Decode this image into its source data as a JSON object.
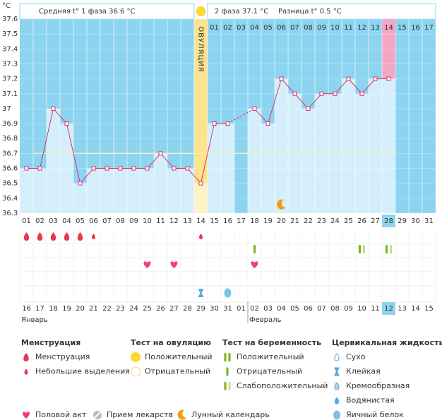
{
  "header": {
    "phase1": "Средняя t° 1 фаза 36.6 °C",
    "phase2": "2 фаза 37.1 °C",
    "diff": "Разница t° 0.5 °C"
  },
  "chart_data": {
    "type": "line",
    "y_label": "°C",
    "color": "#e0306a",
    "categories": [
      "01",
      "02",
      "03",
      "04",
      "05",
      "06",
      "07",
      "08",
      "09",
      "10",
      "11",
      "12",
      "13",
      "14",
      "15",
      "16",
      "17",
      "18",
      "19",
      "20",
      "21",
      "22",
      "23",
      "24",
      "25",
      "26",
      "27",
      "28",
      "29",
      "30",
      "31"
    ],
    "values": [
      36.6,
      36.6,
      37.0,
      36.9,
      36.5,
      36.6,
      36.6,
      36.6,
      36.6,
      36.6,
      36.7,
      36.6,
      36.6,
      36.5,
      36.9,
      36.9,
      null,
      37.0,
      36.9,
      37.2,
      37.1,
      37.0,
      37.1,
      37.1,
      37.2,
      37.1,
      37.2,
      37.2,
      null,
      null,
      null
    ],
    "ylim": [
      36.3,
      37.6
    ],
    "yticks": [
      37.6,
      37.5,
      37.4,
      37.3,
      37.2,
      37.1,
      37,
      36.9,
      36.8,
      36.7,
      36.6,
      36.5,
      36.4,
      36.3
    ],
    "coverline": 36.7,
    "ovulation_label": "ОВУЛЯЦИЯ",
    "ovulation_day": "14",
    "highlight_day": "28",
    "cycle_days": {
      "start": "15",
      "labels": [
        "01",
        "02",
        "03",
        "04",
        "05",
        "06",
        "07",
        "08",
        "09",
        "10",
        "11",
        "12",
        "13",
        "14",
        "15",
        "16",
        "17"
      ]
    },
    "dates": [
      {
        "text": "16",
        "color": "#333"
      },
      {
        "text": "17",
        "color": "#d0104c"
      },
      {
        "text": "18",
        "color": "#d0104c"
      },
      {
        "text": "19",
        "color": "#333"
      },
      {
        "text": "20",
        "color": "#333"
      },
      {
        "text": "21",
        "color": "#333"
      },
      {
        "text": "22",
        "color": "#333"
      },
      {
        "text": "23",
        "color": "#333"
      },
      {
        "text": "24",
        "color": "#d0104c"
      },
      {
        "text": "25",
        "color": "#d0104c"
      },
      {
        "text": "26",
        "color": "#333"
      },
      {
        "text": "27",
        "color": "#333"
      },
      {
        "text": "28",
        "color": "#333"
      },
      {
        "text": "29",
        "color": "#333"
      },
      {
        "text": "30",
        "color": "#333"
      },
      {
        "text": "31",
        "color": "#d0104c"
      },
      {
        "text": "01",
        "color": "#d0104c"
      },
      {
        "text": "02",
        "color": "#333"
      },
      {
        "text": "03",
        "color": "#333"
      },
      {
        "text": "04",
        "color": "#333"
      },
      {
        "text": "05",
        "color": "#333"
      },
      {
        "text": "06",
        "color": "#333"
      },
      {
        "text": "07",
        "color": "#d0104c"
      },
      {
        "text": "08",
        "color": "#d0104c"
      },
      {
        "text": "09",
        "color": "#333"
      },
      {
        "text": "10",
        "color": "#333"
      },
      {
        "text": "11",
        "color": "#333"
      },
      {
        "text": "12",
        "color": "#333"
      },
      {
        "text": "13",
        "color": "#333"
      },
      {
        "text": "14",
        "color": "#d0104c"
      },
      {
        "text": "15",
        "color": "#d0104c"
      }
    ],
    "months": [
      {
        "label": "Январь",
        "day": "01"
      },
      {
        "label": "Февраль",
        "day": "18"
      }
    ]
  },
  "legend": {
    "groups": [
      {
        "title": "Менструация",
        "items": [
          {
            "label": "Менструация",
            "days": [
              "01",
              "02",
              "03",
              "04",
              "05"
            ]
          },
          {
            "label": "Небольшие выделения",
            "days": [
              "06",
              "14"
            ]
          }
        ]
      },
      {
        "title": "Тест на овуляцию",
        "items": [
          {
            "label": "Положительный",
            "days": [
              "14"
            ]
          },
          {
            "label": "Отрицательный",
            "days": []
          }
        ]
      },
      {
        "title": "Тест на беременность",
        "items": [
          {
            "label": "Положительный",
            "days": []
          },
          {
            "label": "Отрицательный",
            "days": [
              "18"
            ]
          },
          {
            "label": "Слабоположительный",
            "days": [
              "26",
              "28"
            ]
          }
        ]
      },
      {
        "title": "Цервикальная жидкость",
        "items": [
          {
            "label": "Сухо",
            "days": []
          },
          {
            "label": "Клейкая",
            "days": [
              "14"
            ]
          },
          {
            "label": "Кремообразная",
            "days": []
          },
          {
            "label": "Водянистая",
            "days": []
          },
          {
            "label": "Яичный белок",
            "days": [
              "16"
            ]
          }
        ]
      }
    ],
    "extras": [
      {
        "label": "Половой акт",
        "days": [
          "10",
          "12",
          "18"
        ]
      },
      {
        "label": "Прием лекарств",
        "days": []
      },
      {
        "label": "Лунный календарь",
        "days": [
          "20"
        ]
      }
    ]
  }
}
